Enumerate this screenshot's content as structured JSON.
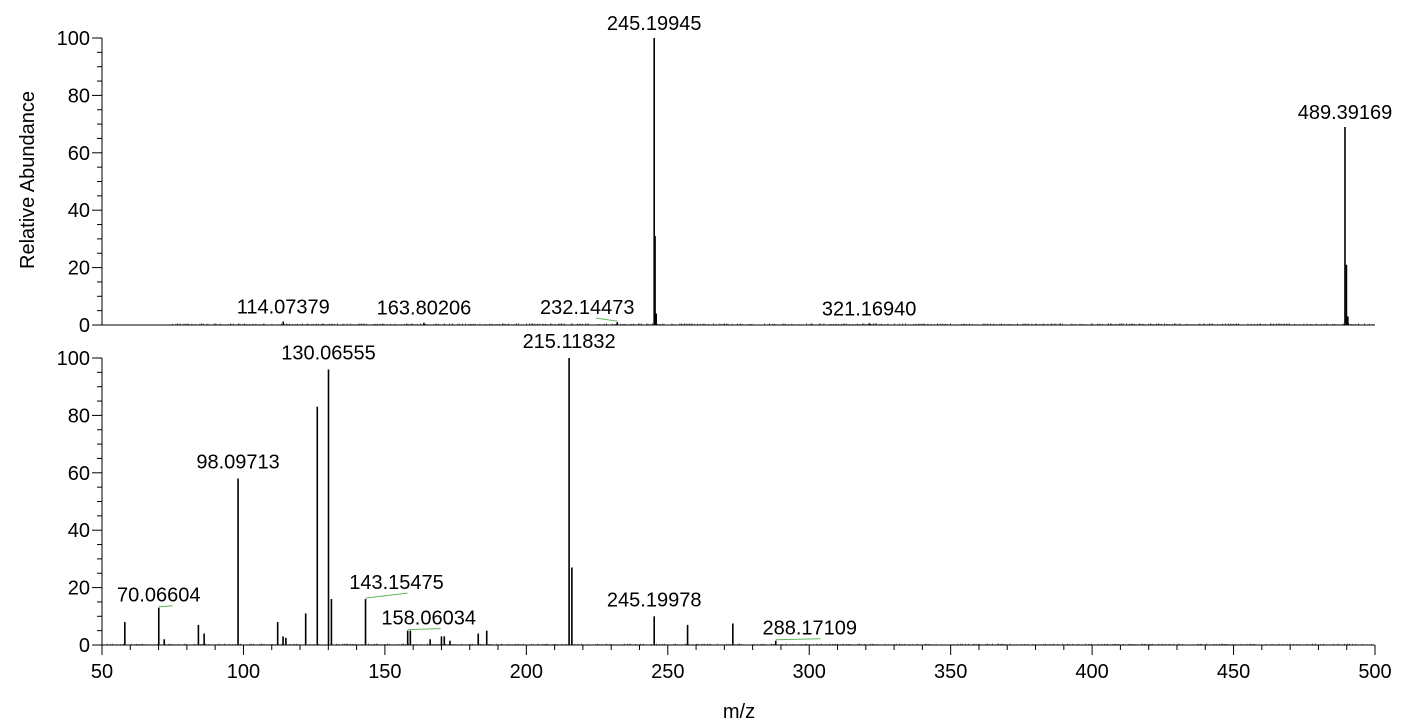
{
  "chart_data": [
    {
      "type": "bar",
      "title": "",
      "xlabel": "",
      "ylabel": "Relative Abundance",
      "xlim": [
        50,
        500
      ],
      "ylim": [
        0,
        100
      ],
      "yticks": [
        0,
        20,
        40,
        60,
        80,
        100
      ],
      "peaks": [
        {
          "x": 114.07379,
          "y": 1.2
        },
        {
          "x": 163.80206,
          "y": 0.8
        },
        {
          "x": 232.14473,
          "y": 1.0
        },
        {
          "x": 245.19945,
          "y": 100
        },
        {
          "x": 245.5,
          "y": 31
        },
        {
          "x": 245.9,
          "y": 4
        },
        {
          "x": 321.1694,
          "y": 0.6
        },
        {
          "x": 489.39169,
          "y": 69
        },
        {
          "x": 489.9,
          "y": 21
        },
        {
          "x": 490.4,
          "y": 3
        }
      ],
      "labels": [
        {
          "x": 245.19945,
          "y": 100,
          "text": "245.19945"
        },
        {
          "x": 489.39169,
          "y": 69,
          "text": "489.39169"
        },
        {
          "x": 114.07379,
          "y": 1.2,
          "text": "114.07379"
        },
        {
          "x": 163.80206,
          "y": 0.8,
          "text": "163.80206"
        },
        {
          "x": 232.14473,
          "y": 1.0,
          "text": "232.14473"
        },
        {
          "x": 321.1694,
          "y": 0.6,
          "text": "321.16940"
        }
      ]
    },
    {
      "type": "bar",
      "title": "",
      "xlabel": "m/z",
      "ylabel": "Relative Abundance",
      "xlim": [
        50,
        500
      ],
      "ylim": [
        0,
        100
      ],
      "xticks": [
        50,
        100,
        150,
        200,
        250,
        300,
        350,
        400,
        450,
        500
      ],
      "yticks": [
        0,
        20,
        40,
        60,
        80,
        100
      ],
      "peaks": [
        {
          "x": 58.07,
          "y": 8
        },
        {
          "x": 70.06604,
          "y": 13
        },
        {
          "x": 72.0,
          "y": 2
        },
        {
          "x": 84.08,
          "y": 7
        },
        {
          "x": 86.1,
          "y": 4
        },
        {
          "x": 98.09713,
          "y": 58
        },
        {
          "x": 112.1,
          "y": 8
        },
        {
          "x": 114.0,
          "y": 3
        },
        {
          "x": 115.0,
          "y": 2.5
        },
        {
          "x": 122.0,
          "y": 11
        },
        {
          "x": 126.1,
          "y": 83
        },
        {
          "x": 130.06555,
          "y": 96
        },
        {
          "x": 131.1,
          "y": 16
        },
        {
          "x": 143.15475,
          "y": 16
        },
        {
          "x": 158.06034,
          "y": 5
        },
        {
          "x": 159.0,
          "y": 5
        },
        {
          "x": 166.0,
          "y": 2
        },
        {
          "x": 170.0,
          "y": 3
        },
        {
          "x": 171.0,
          "y": 3
        },
        {
          "x": 173.0,
          "y": 1.5
        },
        {
          "x": 183.0,
          "y": 4
        },
        {
          "x": 186.0,
          "y": 5
        },
        {
          "x": 215.11832,
          "y": 100
        },
        {
          "x": 216.1,
          "y": 27
        },
        {
          "x": 245.19978,
          "y": 10
        },
        {
          "x": 257.0,
          "y": 7
        },
        {
          "x": 273.0,
          "y": 7.5
        },
        {
          "x": 288.17109,
          "y": 1.5
        }
      ],
      "labels": [
        {
          "x": 70.06604,
          "y": 13,
          "text": "70.06604"
        },
        {
          "x": 98.09713,
          "y": 58,
          "text": "98.09713"
        },
        {
          "x": 130.06555,
          "y": 96,
          "text": "130.06555"
        },
        {
          "x": 143.15475,
          "y": 16,
          "text": "143.15475"
        },
        {
          "x": 158.06034,
          "y": 5,
          "text": "158.06034"
        },
        {
          "x": 215.11832,
          "y": 100,
          "text": "215.11832"
        },
        {
          "x": 245.19978,
          "y": 10,
          "text": "245.19978"
        },
        {
          "x": 288.17109,
          "y": 1.5,
          "text": "288.17109"
        }
      ]
    }
  ]
}
